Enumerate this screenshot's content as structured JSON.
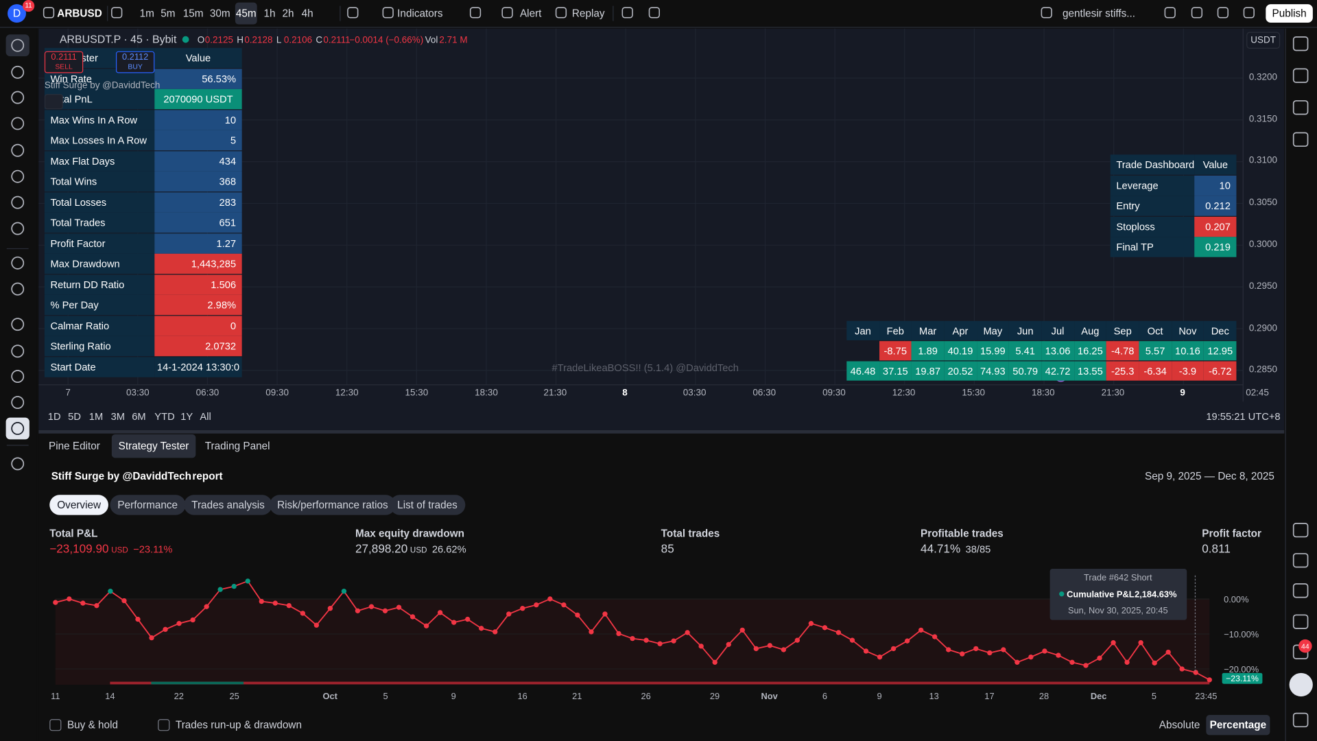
{
  "toolbar": {
    "avatar": "D",
    "badge": "11",
    "symbol": "ARBUSD",
    "intervals": [
      "1m",
      "5m",
      "15m",
      "30m",
      "45m",
      "1h",
      "2h",
      "4h"
    ],
    "indicators": "Indicators",
    "alert": "Alert",
    "replay": "Replay",
    "layout_name": "gentlesir stiffs...",
    "publish": "Publish"
  },
  "legend": {
    "symbol": "ARBUSDT.P · 45 · Bybit",
    "ohlc": [
      {
        "label": "O",
        "value": "0.2125"
      },
      {
        "label": "H",
        "value": "0.2128"
      },
      {
        "label": "L",
        "value": "0.2106"
      },
      {
        "label": "C",
        "value": "0.2111"
      }
    ],
    "change": "−0.0014 (−0.66%)",
    "volume_label": "Vol",
    "volume": "2.71 M",
    "indicator": "Stiff Surge by @DaviddTech"
  },
  "order_buttons": {
    "sell_price": "0.2111",
    "sell": "SELL",
    "buy_price": "0.2112",
    "buy": "BUY"
  },
  "backtest_table": {
    "header": [
      "Backtester",
      "Value"
    ],
    "rows": [
      {
        "label": "Win Rate",
        "value": "56.53%",
        "color": "#1f4c80"
      },
      {
        "label": "Total PnL",
        "value": "2070090 USDT",
        "color": "#0a8f78"
      },
      {
        "label": "Max Wins In A Row",
        "value": "10",
        "color": "#1f4c80"
      },
      {
        "label": "Max Losses In A Row",
        "value": "5",
        "color": "#1f4c80"
      },
      {
        "label": "Max Flat Days",
        "value": "434",
        "color": "#1f4c80"
      },
      {
        "label": "Total Wins",
        "value": "368",
        "color": "#1f4c80"
      },
      {
        "label": "Total Losses",
        "value": "283",
        "color": "#1f4c80"
      },
      {
        "label": "Total Trades",
        "value": "651",
        "color": "#1f4c80"
      },
      {
        "label": "Profit Factor",
        "value": "1.27",
        "color": "#1f4c80"
      },
      {
        "label": "Max Drawdown",
        "value": "1,443,285",
        "color": "#d93636"
      },
      {
        "label": "Return DD Ratio",
        "value": "1.506",
        "color": "#d93636"
      },
      {
        "label": "% Per Day",
        "value": "2.98%",
        "color": "#d93636"
      },
      {
        "label": "Calmar Ratio",
        "value": "0",
        "color": "#d93636"
      },
      {
        "label": "Sterling Ratio",
        "value": "2.0732",
        "color": "#d93636"
      },
      {
        "label": "Start Date",
        "value": "14-1-2024 13:30:0",
        "color": "#0d2b40"
      }
    ]
  },
  "trade_dashboard": {
    "header": [
      "Trade Dashboard",
      "Value"
    ],
    "rows": [
      {
        "label": "Leverage",
        "value": "10",
        "color": "#1f4c80"
      },
      {
        "label": "Entry",
        "value": "0.212",
        "color": "#1f4c80"
      },
      {
        "label": "Stoploss",
        "value": "0.207",
        "color": "#d93636"
      },
      {
        "label": "Final TP",
        "value": "0.219",
        "color": "#0a8f78"
      }
    ]
  },
  "monthly_table": {
    "months": [
      "Jan",
      "Feb",
      "Mar",
      "Apr",
      "May",
      "Jun",
      "Jul",
      "Aug",
      "Sep",
      "Oct",
      "Nov",
      "Dec"
    ],
    "rows": [
      [
        null,
        -8.75,
        1.89,
        40.19,
        15.99,
        5.41,
        13.06,
        16.25,
        -4.78,
        5.57,
        10.16,
        12.95
      ],
      [
        46.48,
        37.15,
        19.87,
        20.52,
        74.93,
        50.79,
        42.72,
        13.55,
        -25.3,
        -6.34,
        -3.9,
        -6.72
      ]
    ]
  },
  "watermark": "#TradeLikeaBOSS!! (5.1.4) @DaviddTech",
  "price_axis": {
    "currency": "USDT",
    "ticks": [
      "0.3200",
      "0.3150",
      "0.3100",
      "0.3050",
      "0.3000",
      "0.2950",
      "0.2900",
      "0.2850"
    ]
  },
  "time_axis": [
    "7",
    "03:30",
    "06:30",
    "09:30",
    "12:30",
    "15:30",
    "18:30",
    "21:30",
    "8",
    "03:30",
    "06:30",
    "09:30",
    "12:30",
    "15:30",
    "18:30",
    "21:30",
    "9",
    "02:45"
  ],
  "range_buttons": [
    "1D",
    "5D",
    "1M",
    "3M",
    "6M",
    "YTD",
    "1Y",
    "All"
  ],
  "clock": "19:55:21 UTC+8",
  "right_badge": "44",
  "bottom_panel": {
    "tabs": [
      "Pine Editor",
      "Strategy Tester",
      "Trading Panel"
    ],
    "strategy": "Stiff Surge by @DaviddTech",
    "report": "report",
    "date_range": "Sep 9, 2025 — Dec 8, 2025",
    "subtabs": [
      "Overview",
      "Performance",
      "Trades analysis",
      "Risk/performance ratios",
      "List of trades"
    ],
    "metrics": [
      {
        "label": "Total P&L",
        "value": "−23,109.90",
        "unit": "USD",
        "extra": "−23.11%"
      },
      {
        "label": "Max equity drawdown",
        "value": "27,898.20",
        "unit": "USD",
        "extra": "26.62%"
      },
      {
        "label": "Total trades",
        "value": "85"
      },
      {
        "label": "Profitable trades",
        "value": "44.71%",
        "extra": "38/85"
      },
      {
        "label": "Profit factor",
        "value": "0.811"
      }
    ]
  },
  "equity_chart": {
    "type": "line",
    "color": "#f23645",
    "positive_color": "#089981",
    "values": [
      -1.0,
      0.0,
      -1.2,
      -1.9,
      2.2,
      -0.5,
      -5.8,
      -11.1,
      -8.7,
      -7.0,
      -6.0,
      -2.2,
      2.7,
      3.6,
      5.1,
      -0.7,
      -1.2,
      -1.9,
      -4.1,
      -7.5,
      -2.7,
      2.2,
      -3.4,
      -2.2,
      -3.4,
      -2.4,
      -5.1,
      -7.7,
      -3.9,
      -6.7,
      -5.8,
      -8.4,
      -9.4,
      -4.3,
      -2.7,
      -1.7,
      0.0,
      -1.7,
      -4.6,
      -9.4,
      -4.3,
      -9.9,
      -11.3,
      -11.8,
      -12.8,
      -12.0,
      -9.6,
      -13.5,
      -18.1,
      -13.0,
      -8.9,
      -14.2,
      -13.3,
      -14.5,
      -11.8,
      -7.0,
      -8.2,
      -9.6,
      -11.8,
      -14.9,
      -16.6,
      -14.2,
      -12.0,
      -8.9,
      -10.8,
      -14.5,
      -15.7,
      -14.2,
      -15.4,
      -14.5,
      -18.1,
      -16.6,
      -14.9,
      -16.1,
      -18.1,
      -19.0,
      -16.9,
      -12.5,
      -18.1,
      -12.5,
      -18.3,
      -15.2,
      -20.0,
      -21.0,
      -23.11
    ],
    "ylim": [
      -24.5,
      5.5
    ],
    "yticks": [
      {
        "value": 0,
        "label": "0.00%"
      },
      {
        "value": -10,
        "label": "−10.00%"
      },
      {
        "value": -20,
        "label": "−20.00%"
      }
    ],
    "x_labels": [
      "11",
      "14",
      "22",
      "25",
      "Oct",
      "5",
      "9",
      "16",
      "21",
      "26",
      "29",
      "Nov",
      "6",
      "9",
      "13",
      "17",
      "28",
      "Dec",
      "5",
      "23:45"
    ],
    "last_label": "−23.11%",
    "tooltip": {
      "title": "Trade #642 Short",
      "series": "Cumulative P&L",
      "value": "2,184.63%",
      "date": "Sun, Nov 30, 2025, 20:45"
    }
  },
  "footer": {
    "buy_hold": "Buy & hold",
    "runup": "Trades run-up & drawdown",
    "absolute": "Absolute",
    "percentage": "Percentage"
  }
}
